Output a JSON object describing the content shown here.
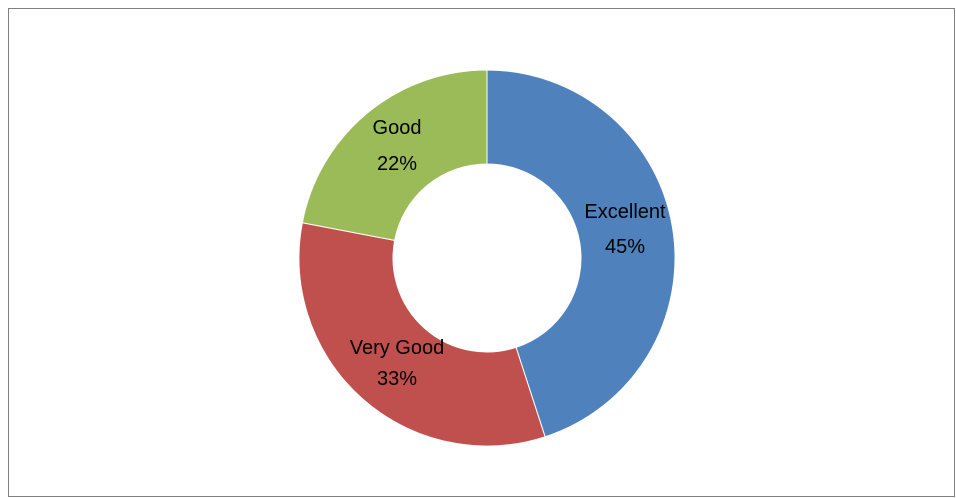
{
  "chart_data": {
    "type": "pie",
    "variant": "doughnut",
    "title": "",
    "categories": [
      "Excellent",
      "Very Good",
      "Good"
    ],
    "values": [
      45,
      33,
      22
    ],
    "value_labels": [
      "45%",
      "33%",
      "22%"
    ],
    "colors": [
      "#4F81BD",
      "#C0504D",
      "#9BBB59"
    ],
    "legend": "none"
  }
}
